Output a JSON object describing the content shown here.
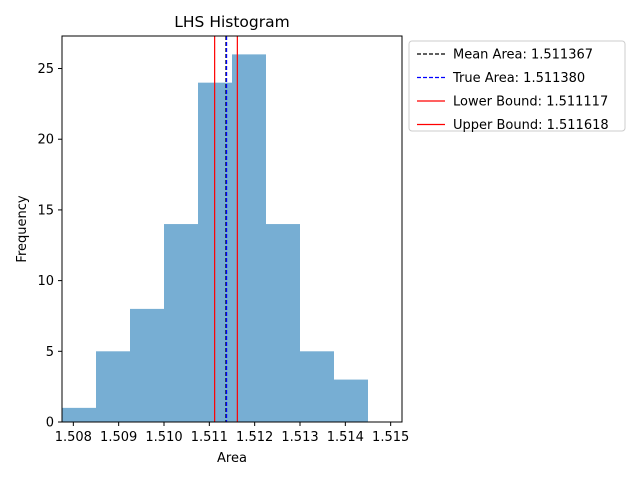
{
  "chart_data": {
    "type": "bar",
    "title": "LHS Histogram",
    "xlabel": "Area",
    "ylabel": "Frequency",
    "xlim": [
      1.50775,
      1.51525
    ],
    "ylim": [
      0,
      27.3
    ],
    "x_ticks": [
      1.508,
      1.509,
      1.51,
      1.511,
      1.512,
      1.513,
      1.514,
      1.515
    ],
    "x_tick_labels": [
      "1.508",
      "1.509",
      "1.510",
      "1.511",
      "1.512",
      "1.513",
      "1.514",
      "1.515"
    ],
    "y_ticks": [
      0,
      5,
      10,
      15,
      20,
      25
    ],
    "y_tick_labels": [
      "0",
      "5",
      "10",
      "15",
      "20",
      "25"
    ],
    "bin_edges": [
      1.50775,
      1.5085,
      1.50925,
      1.51,
      1.51075,
      1.5115,
      1.51225,
      1.513,
      1.51375,
      1.5145
    ],
    "values": [
      1,
      5,
      8,
      14,
      24,
      26,
      14,
      5,
      3
    ],
    "bar_color": "#77aed3",
    "grid": false,
    "lines": [
      {
        "label": "Mean Area: 1.511367",
        "x": 1.511367,
        "color": "#000000",
        "dashed": true
      },
      {
        "label": "True Area: 1.511380",
        "x": 1.51138,
        "color": "#0000ff",
        "dashed": true
      },
      {
        "label": "Lower Bound: 1.511117",
        "x": 1.511117,
        "color": "#ff0000",
        "dashed": false
      },
      {
        "label": "Upper Bound: 1.511618",
        "x": 1.511618,
        "color": "#ff0000",
        "dashed": false
      }
    ],
    "legend_position": "outside-top-right"
  }
}
